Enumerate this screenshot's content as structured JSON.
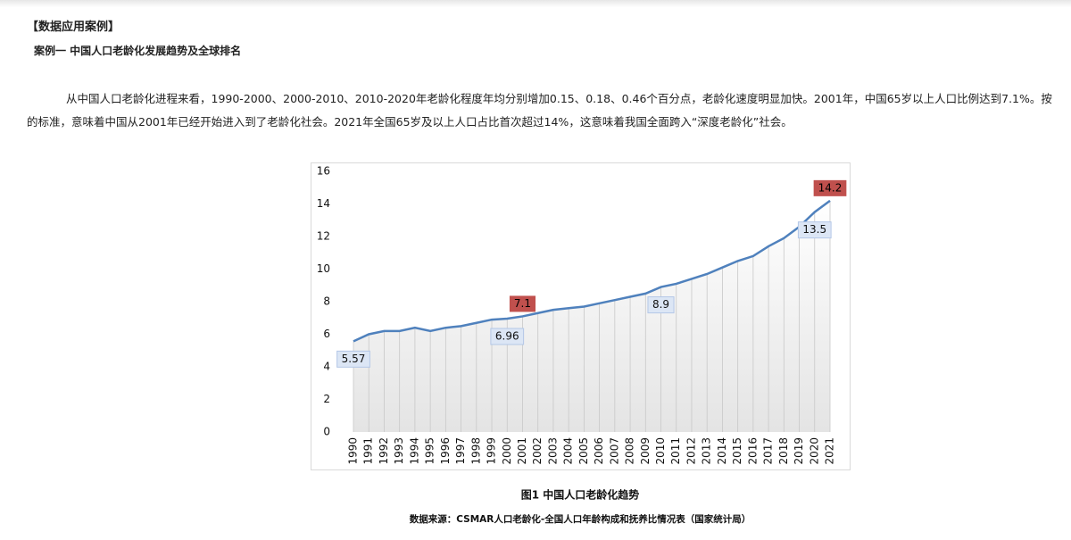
{
  "header": {
    "title": "【数据应用案例】",
    "subtitle": "案例一 中国人口老龄化发展趋势及全球排名"
  },
  "paragraph": [
    "从中国人口老龄化进程来看，1990-2000、2000-2010、2010-2020年老龄化程度年均分别增加0.15、0.18、0.46个百分点，老龄化速度明显加快。2001年，中国65岁以上人口比例达到7.1%。按",
    "的标准，意味着中国从2001年已经开始进入到了老龄化社会。2021年全国65岁及以上人口占比首次超过14%，这意味着我国全面跨入“深度老龄化”社会。"
  ],
  "chart_data": {
    "type": "line",
    "color": "#4f81bd",
    "categories": [
      "1990",
      "1991",
      "1992",
      "1993",
      "1994",
      "1995",
      "1996",
      "1997",
      "1998",
      "1999",
      "2000",
      "2001",
      "2002",
      "2003",
      "2004",
      "2005",
      "2006",
      "2007",
      "2008",
      "2009",
      "2010",
      "2011",
      "2012",
      "2013",
      "2014",
      "2015",
      "2016",
      "2017",
      "2018",
      "2019",
      "2020",
      "2021"
    ],
    "values": [
      5.57,
      6.0,
      6.2,
      6.2,
      6.4,
      6.2,
      6.4,
      6.5,
      6.7,
      6.9,
      6.96,
      7.1,
      7.3,
      7.5,
      7.6,
      7.7,
      7.9,
      8.1,
      8.3,
      8.5,
      8.9,
      9.1,
      9.4,
      9.7,
      10.1,
      10.5,
      10.8,
      11.4,
      11.9,
      12.6,
      13.5,
      14.2
    ],
    "value_labels": [
      "5.57",
      null,
      null,
      null,
      null,
      null,
      null,
      null,
      null,
      null,
      "6.96",
      "7.1",
      null,
      null,
      null,
      null,
      null,
      null,
      null,
      null,
      "8.9",
      null,
      null,
      null,
      null,
      null,
      null,
      null,
      null,
      null,
      "13.5",
      "14.2"
    ],
    "value_label_colors": [
      "#dce6f5",
      null,
      null,
      null,
      null,
      null,
      null,
      null,
      null,
      null,
      "#dce6f5",
      "#c0504d",
      null,
      null,
      null,
      null,
      null,
      null,
      null,
      null,
      "#dce6f5",
      null,
      null,
      null,
      null,
      null,
      null,
      null,
      null,
      null,
      "#dce6f5",
      "#c0504d"
    ],
    "ylim": [
      0,
      16
    ],
    "yticks": [
      0,
      2,
      4,
      6,
      8,
      10,
      12,
      14,
      16
    ]
  },
  "caption": "图1  中国人口老龄化趋势",
  "source": "数据来源：CSMAR人口老龄化-全国人口年龄构成和抚养比情况表（国家统计局）"
}
